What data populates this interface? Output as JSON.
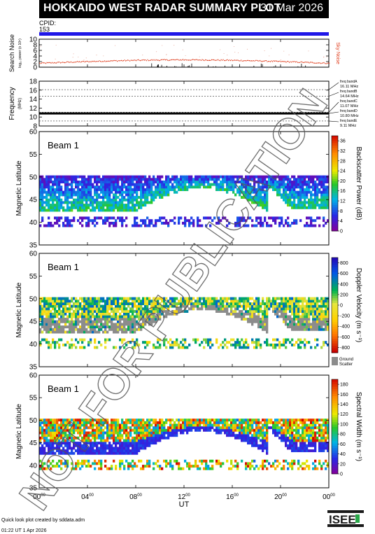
{
  "header": {
    "title": "HOKKAIDO WEST RADAR SUMMARY PLOT",
    "date": "31 Mar 2026",
    "cpid_label": "CPID:",
    "cpid_value": "153"
  },
  "colors": {
    "cpid_bar": "#1f17e8",
    "noise": "#e04020",
    "ground_scatter": "#8c8c8c"
  },
  "chart_data": [
    {
      "type": "scatter",
      "panel": "search-noise",
      "ylabel": "Search Noise",
      "ylabel_sub": "log₁₀ power (x 10⁶)",
      "right_label": "Sky Noise",
      "ylim": [
        0,
        10
      ],
      "yticks": [
        0,
        2,
        4,
        6,
        8,
        10
      ],
      "noise_level_start": 1.4,
      "noise_level_mid": 2.6,
      "noise_level_end": 1.6
    },
    {
      "type": "line",
      "panel": "frequency",
      "ylabel": "Frequency",
      "ylabel_unit": "(MHz)",
      "ylim": [
        8,
        18
      ],
      "yticks": [
        8,
        10,
        12,
        14,
        16,
        18
      ],
      "freq_bands": [
        {
          "label": "freq bandA",
          "value_label": "16.11 MHz",
          "freq": 16.11
        },
        {
          "label": "freq bandB",
          "value_label": "14.64 MHz",
          "freq": 14.64
        },
        {
          "label": "freq bandC",
          "value_label": "11.07 MHz",
          "freq": 11.07
        },
        {
          "label": "freq bandD",
          "value_label": "10.80 MHz",
          "freq": 10.8
        },
        {
          "label": "freq bandE",
          "value_label": "9.11 MHz",
          "freq": 9.11
        }
      ],
      "operating_freq": 10.8
    },
    {
      "type": "heatmap",
      "panel": "power",
      "beam_label": "Beam  1",
      "ylabel": "Magnetic Latitude",
      "ylim": [
        35,
        60
      ],
      "yticks": [
        35,
        40,
        45,
        50,
        55,
        60
      ],
      "colorbar_label": "Backscatter Power (dB)",
      "colorbar_ticks": [
        0,
        4,
        8,
        12,
        16,
        20,
        24,
        28,
        32,
        36
      ],
      "colorbar_range": [
        0,
        38
      ]
    },
    {
      "type": "heatmap",
      "panel": "velocity",
      "beam_label": "Beam  1",
      "ylabel": "Magnetic Latitude",
      "ylim": [
        35,
        60
      ],
      "yticks": [
        35,
        40,
        45,
        50,
        55,
        60
      ],
      "colorbar_label": "Doppler Velocity (m s⁻¹)",
      "colorbar_ticks": [
        800,
        600,
        400,
        200,
        0,
        -200,
        -400,
        -600,
        -800
      ],
      "colorbar_range": [
        -900,
        900
      ],
      "ground_scatter_label": "Ground",
      "ground_scatter_label_2": "Scatter"
    },
    {
      "type": "heatmap",
      "panel": "width",
      "beam_label": "Beam  1",
      "ylabel": "Magnetic Latitude",
      "ylim": [
        35,
        60
      ],
      "yticks": [
        35,
        40,
        45,
        50,
        55,
        60
      ],
      "colorbar_label": "Spectral Width (m s⁻¹)",
      "colorbar_ticks": [
        0,
        20,
        40,
        60,
        80,
        100,
        120,
        140,
        160,
        180
      ],
      "colorbar_range": [
        0,
        190
      ]
    }
  ],
  "xaxis": {
    "label": "UT",
    "xlim": [
      0,
      24
    ],
    "ticks": [
      {
        "hour": 0,
        "label": "00",
        "sup": "00"
      },
      {
        "hour": 4,
        "label": "04",
        "sup": "00"
      },
      {
        "hour": 8,
        "label": "08",
        "sup": "00"
      },
      {
        "hour": 12,
        "label": "12",
        "sup": "00"
      },
      {
        "hour": 16,
        "label": "16",
        "sup": "00"
      },
      {
        "hour": 20,
        "label": "20",
        "sup": "00"
      },
      {
        "hour": 24,
        "label": "00",
        "sup": "00"
      }
    ]
  },
  "watermark": "NOT FOR PUBLICATION",
  "footer": {
    "line1": "Quick look plot created by sddata.adm",
    "line2": "01:22 UT  1 Apr 2026"
  },
  "logo_text": "ISEE"
}
